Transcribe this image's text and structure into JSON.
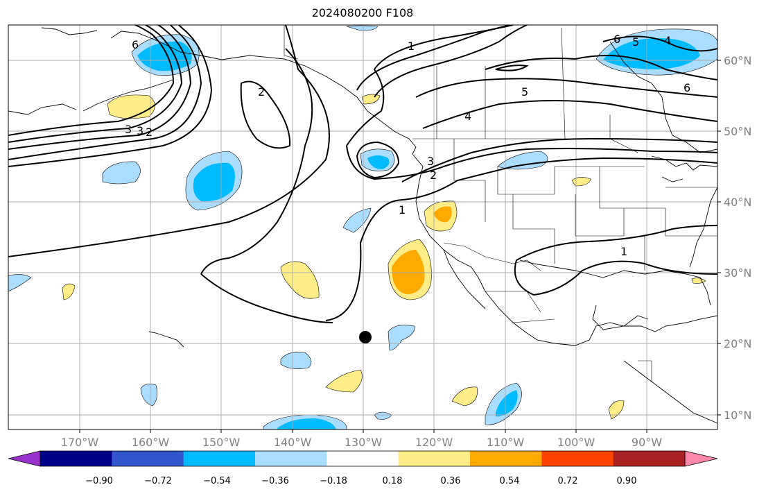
{
  "title": "2024080200 F108",
  "lon_labels": [
    "170°W",
    "160°W",
    "150°W",
    "140°W",
    "130°W",
    "120°W",
    "110°W",
    "100°W",
    "90°W"
  ],
  "lat_labels": [
    "60°N",
    "50°N",
    "40°N",
    "30°N",
    "20°N",
    "10°N"
  ],
  "colorbar": {
    "tick_labels": [
      "−0.90",
      "−0.72",
      "−0.54",
      "−0.36",
      "−0.18",
      "0.18",
      "0.36",
      "0.54",
      "0.72",
      "0.90"
    ],
    "colors": [
      "#9933cc",
      "#000088",
      "#3355cc",
      "#00bbff",
      "#aaddff",
      "#ffffff",
      "#ffee88",
      "#ffaa00",
      "#ff4400",
      "#aa2222",
      "#ff88aa"
    ]
  },
  "contour_labels": [
    "1",
    "2",
    "3",
    "4",
    "5",
    "6"
  ],
  "shading_colors": {
    "light_blue": "#aaddff",
    "blue": "#00bbff",
    "light_yellow": "#ffee88",
    "orange": "#ffaa00"
  },
  "marker": {
    "name": "storm-center",
    "lon": -130,
    "lat": 21
  }
}
